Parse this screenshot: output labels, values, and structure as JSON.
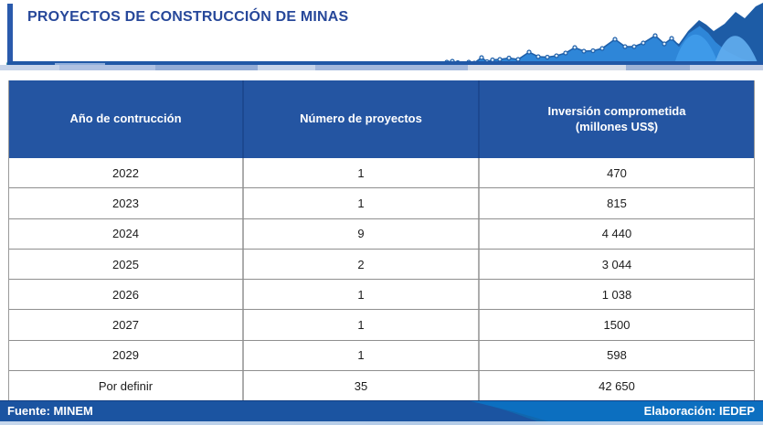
{
  "header": {
    "title": "PROYECTOS DE CONSTRUCCIÓN DE MINAS"
  },
  "table": {
    "columns": [
      {
        "label": "Año de contrucción"
      },
      {
        "label": "Número de proyectos"
      },
      {
        "label": "Inversión comprometida (millones US$)",
        "label_line1": "Inversión comprometida",
        "label_line2": "(millones US$)"
      }
    ],
    "rows": [
      [
        "2022",
        "1",
        "470"
      ],
      [
        "2023",
        "1",
        "815"
      ],
      [
        "2024",
        "9",
        "4 440"
      ],
      [
        "2025",
        "2",
        "3 044"
      ],
      [
        "2026",
        "1",
        "1 038"
      ],
      [
        "2027",
        "1",
        "1500"
      ],
      [
        "2029",
        "1",
        "598"
      ],
      [
        "Por definir",
        "35",
        "42 650"
      ]
    ]
  },
  "footer": {
    "source": "Fuente: MINEM",
    "elaboration": "Elaboración: IEDEP"
  },
  "colors": {
    "title_text": "#27489A",
    "table_header_bg": "#2455A2",
    "accent_line": "#2158A6",
    "footer_left": "#1B54A1",
    "footer_right": "#0C6FC0",
    "bottom_strip": "#B7CDE7",
    "spark_medium": "#2E86D8",
    "spark_dark": "#1D5CA6",
    "spark_light": "#4FA5EE"
  },
  "chart_data": {
    "type": "table",
    "title": "PROYECTOS DE CONSTRUCCIÓN DE MINAS",
    "columns": [
      "Año de contrucción",
      "Número de proyectos",
      "Inversión comprometida (millones US$)"
    ],
    "rows": [
      [
        "2022",
        1,
        470
      ],
      [
        "2023",
        1,
        815
      ],
      [
        "2024",
        9,
        4440
      ],
      [
        "2025",
        2,
        3044
      ],
      [
        "2026",
        1,
        1038
      ],
      [
        "2027",
        1,
        1500
      ],
      [
        "2029",
        1,
        598
      ],
      [
        "Por definir",
        35,
        42650
      ]
    ],
    "source": "Fuente: MINEM",
    "elaboration": "Elaboración: IEDEP"
  }
}
